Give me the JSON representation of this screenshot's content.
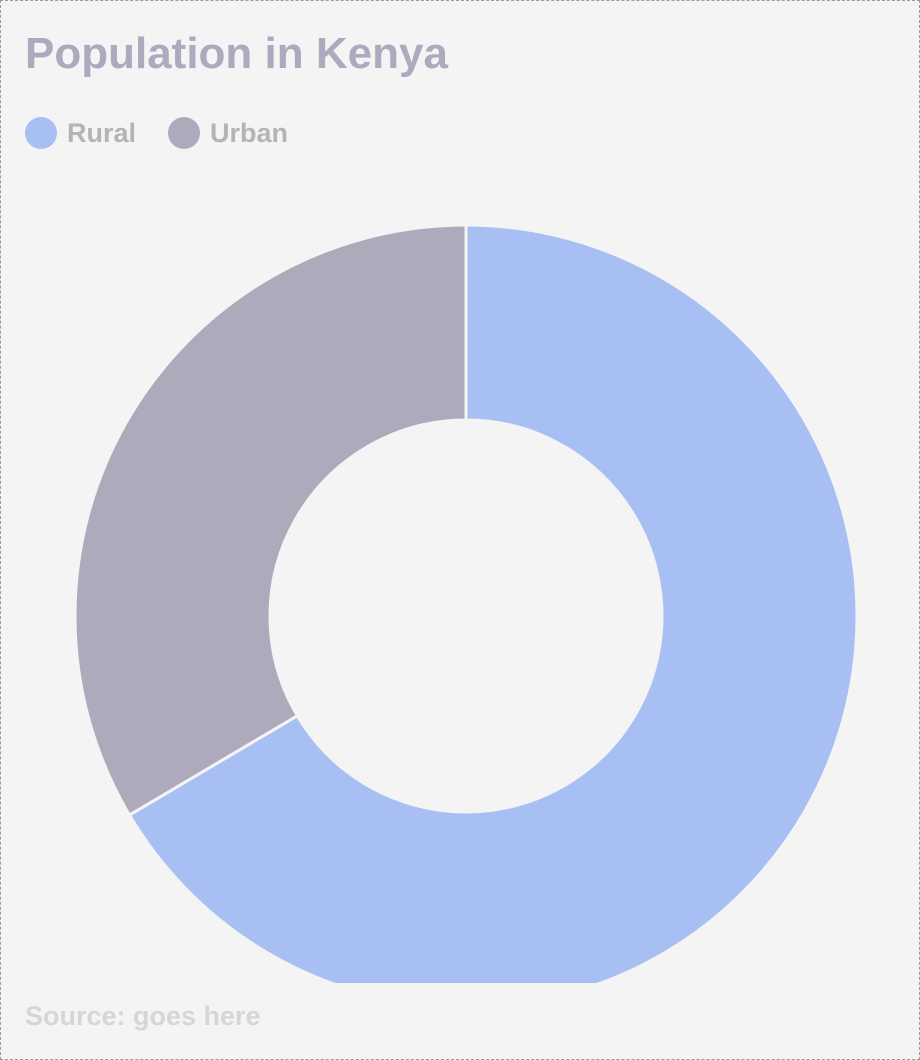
{
  "chart_data": {
    "type": "pie",
    "style": "donut",
    "title": "Population in Kenya",
    "categories": [
      "Rural",
      "Urban"
    ],
    "values": [
      66.5,
      33.5
    ],
    "colors": [
      "#a8bff3",
      "#aeaabc"
    ],
    "legend": {
      "placement": "top-left",
      "entries": [
        {
          "label": "Rural",
          "color": "#a8bff3"
        },
        {
          "label": "Urban",
          "color": "#aeaabc"
        }
      ]
    },
    "start_angle": "12 o'clock",
    "direction": "clockwise",
    "source": "Source: goes here"
  }
}
